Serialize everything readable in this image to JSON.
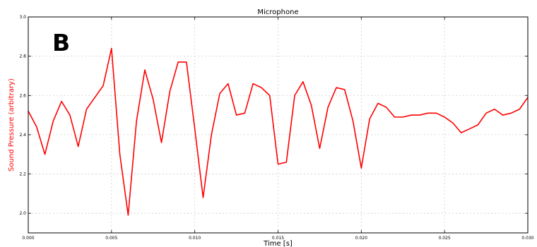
{
  "panel_label": "B",
  "chart_data": {
    "type": "line",
    "title": "Microphone",
    "xlabel": "Time [s]",
    "ylabel": "Sound Pressure (arbitrary)",
    "xlim": [
      0.0,
      0.03
    ],
    "ylim": [
      1.9,
      3.0
    ],
    "grid": true,
    "legend": "none",
    "x_ticks": [
      0.0,
      0.005,
      0.01,
      0.015,
      0.02,
      0.025,
      0.03
    ],
    "x_tick_labels": [
      "0.000",
      "0.005",
      "0.010",
      "0.015",
      "0.020",
      "0.025",
      "0.030"
    ],
    "y_ticks": [
      2.0,
      2.2,
      2.4,
      2.6,
      2.8,
      3.0
    ],
    "y_tick_labels": [
      "2.0",
      "2.2",
      "2.4",
      "2.6",
      "2.8",
      "3.0"
    ],
    "colors": {
      "line": "#ff0000",
      "ylabel": "#ff0000",
      "axis": "#000000",
      "grid": "#cfcfcf"
    },
    "series": [
      {
        "x": [
          0.0,
          0.0005,
          0.001,
          0.0015,
          0.002,
          0.0025,
          0.003,
          0.0035,
          0.004,
          0.0045,
          0.005,
          0.0055,
          0.006,
          0.0065,
          0.007,
          0.0075,
          0.008,
          0.0085,
          0.009,
          0.0095,
          0.01,
          0.0105,
          0.011,
          0.0115,
          0.012,
          0.0125,
          0.013,
          0.0135,
          0.014,
          0.0145,
          0.015,
          0.0155,
          0.016,
          0.0165,
          0.017,
          0.0175,
          0.018,
          0.0185,
          0.019,
          0.0195,
          0.02,
          0.0205,
          0.021,
          0.0215,
          0.022,
          0.0225,
          0.023,
          0.0235,
          0.024,
          0.0245,
          0.025,
          0.0255,
          0.026,
          0.0265,
          0.027,
          0.0275,
          0.028,
          0.0285,
          0.029,
          0.0295,
          0.03
        ],
        "y": [
          2.52,
          2.44,
          2.3,
          2.47,
          2.57,
          2.5,
          2.34,
          2.53,
          2.59,
          2.65,
          2.84,
          2.3,
          1.99,
          2.47,
          2.73,
          2.58,
          2.36,
          2.62,
          2.77,
          2.77,
          2.43,
          2.08,
          2.4,
          2.61,
          2.66,
          2.5,
          2.51,
          2.66,
          2.64,
          2.6,
          2.25,
          2.26,
          2.6,
          2.67,
          2.55,
          2.33,
          2.54,
          2.64,
          2.63,
          2.47,
          2.23,
          2.48,
          2.56,
          2.54,
          2.49,
          2.49,
          2.5,
          2.5,
          2.51,
          2.51,
          2.49,
          2.46,
          2.41,
          2.43,
          2.45,
          2.51,
          2.53,
          2.5,
          2.51,
          2.53,
          2.59
        ]
      }
    ]
  }
}
